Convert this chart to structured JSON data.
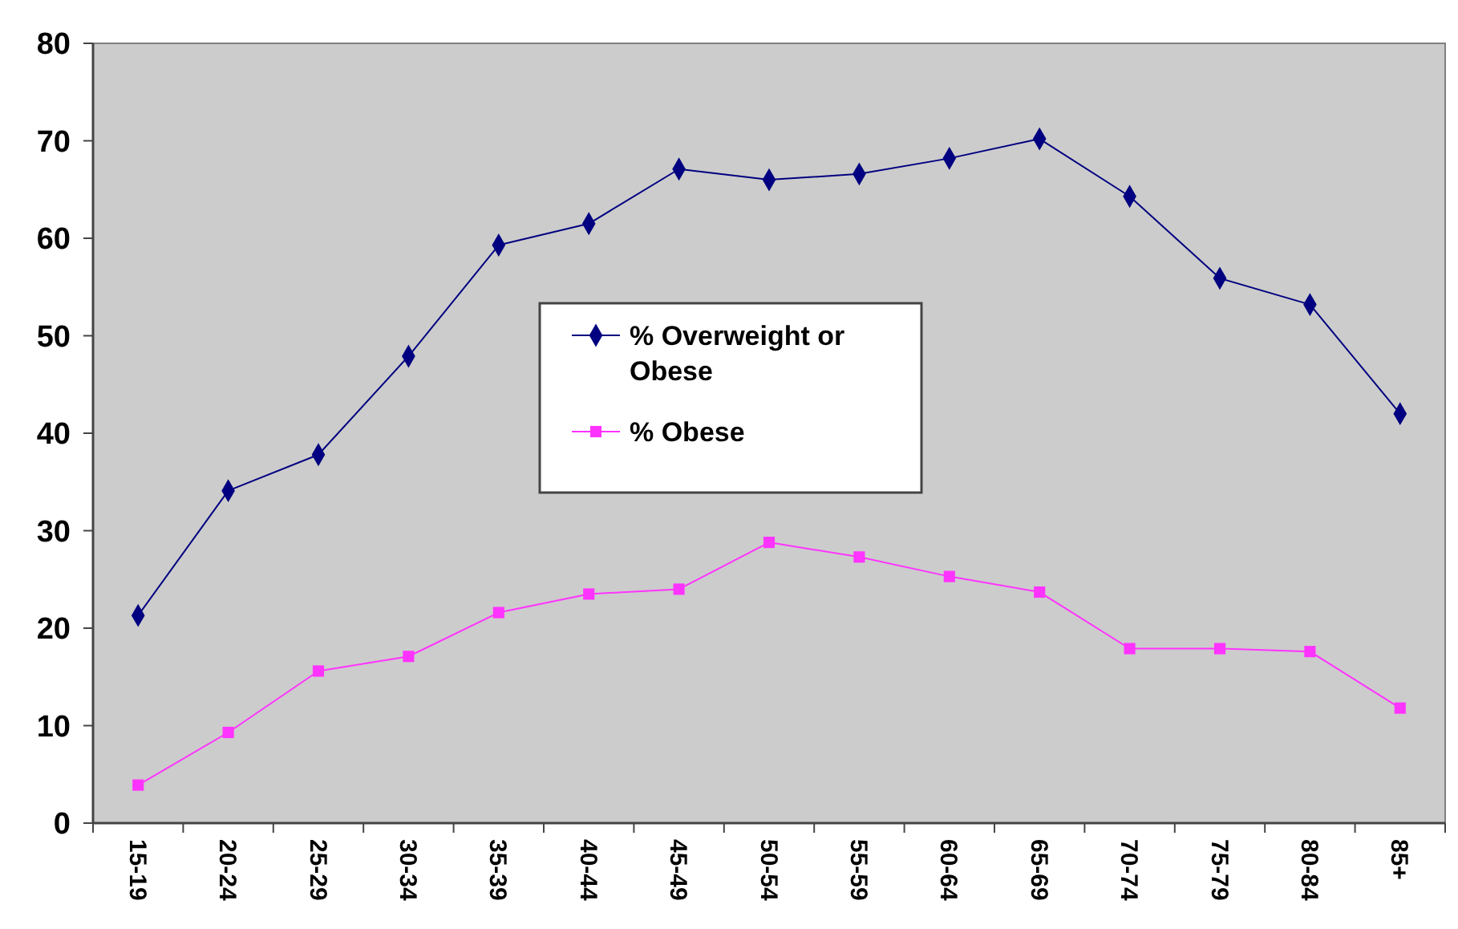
{
  "chart_data": {
    "type": "line",
    "categories": [
      "15-19",
      "20-24",
      "25-29",
      "30-34",
      "35-39",
      "40-44",
      "45-49",
      "50-54",
      "55-59",
      "60-64",
      "65-69",
      "70-74",
      "75-79",
      "80-84",
      "85+"
    ],
    "series": [
      {
        "name": "% Overweight or Obese",
        "color": "#000080",
        "marker": "diamond",
        "values": [
          21.3,
          34.1,
          37.8,
          47.9,
          59.3,
          61.5,
          67.1,
          66.0,
          66.6,
          68.2,
          70.2,
          64.3,
          55.9,
          53.2,
          42.0
        ]
      },
      {
        "name": "% Obese",
        "color": "#ff33ff",
        "marker": "square",
        "values": [
          3.9,
          9.3,
          15.6,
          17.1,
          21.6,
          23.5,
          24.0,
          28.8,
          27.3,
          25.3,
          23.7,
          17.9,
          17.9,
          17.6,
          11.8
        ]
      }
    ],
    "ylim": [
      0,
      80
    ],
    "yticks": [
      0,
      10,
      20,
      30,
      40,
      50,
      60,
      70,
      80
    ],
    "grid": false,
    "legend": "center"
  }
}
